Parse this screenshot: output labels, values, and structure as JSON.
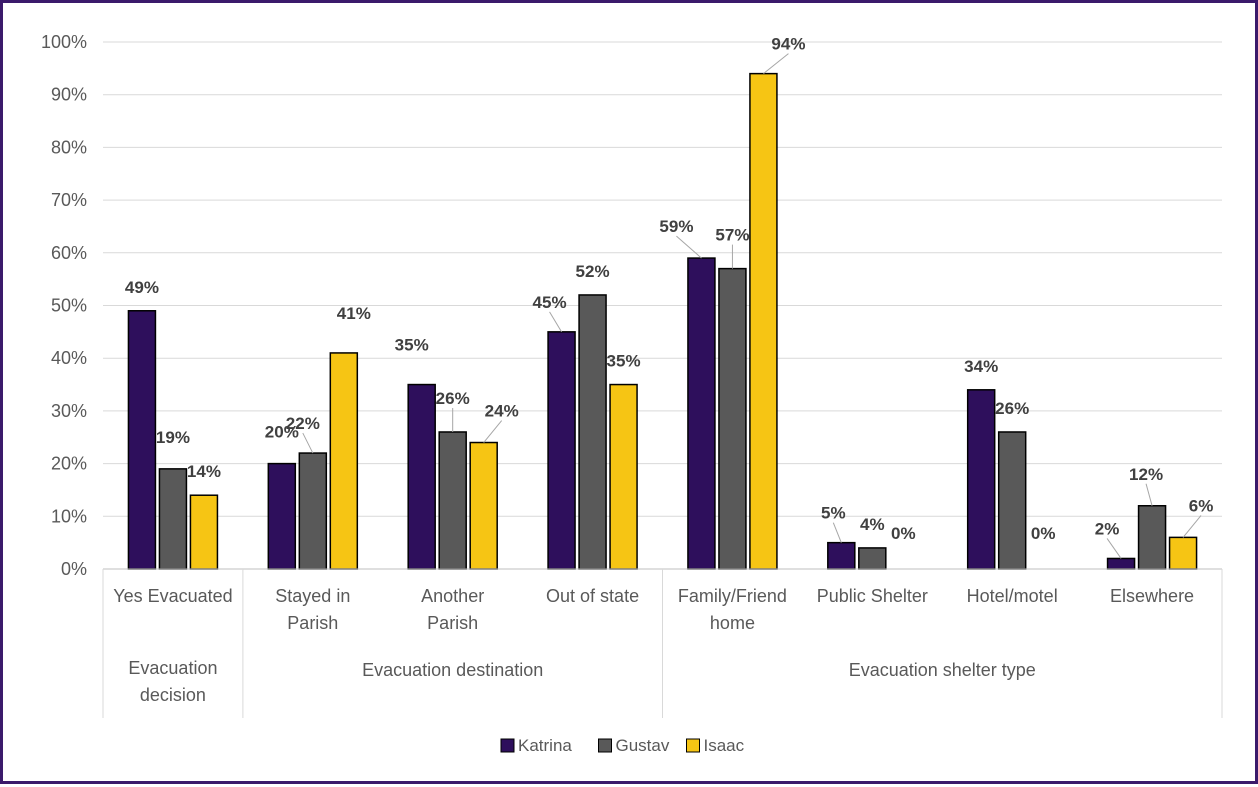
{
  "chart_data": {
    "type": "bar",
    "title": "",
    "xlabel": "",
    "ylabel": "",
    "ylim": [
      0,
      100
    ],
    "y_ticks": [
      "0%",
      "10%",
      "20%",
      "30%",
      "40%",
      "50%",
      "60%",
      "70%",
      "80%",
      "90%",
      "100%"
    ],
    "grid": true,
    "legend_position": "bottom",
    "categories": [
      "Yes Evacuated",
      "Stayed in Parish",
      "Another Parish",
      "Out of state",
      "Family/Friend home",
      "Public Shelter",
      "Hotel/motel",
      "Elsewhere"
    ],
    "category_lines": [
      [
        "Yes Evacuated"
      ],
      [
        "Stayed in",
        "Parish"
      ],
      [
        "Another",
        "Parish"
      ],
      [
        "Out of state"
      ],
      [
        "Family/Friend",
        "home"
      ],
      [
        "Public Shelter"
      ],
      [
        "Hotel/motel"
      ],
      [
        "Elsewhere"
      ]
    ],
    "groups": [
      {
        "label_lines": [
          "Evacuation",
          "decision"
        ],
        "span": [
          0,
          0
        ]
      },
      {
        "label_lines": [
          "Evacuation destination"
        ],
        "span": [
          1,
          3
        ]
      },
      {
        "label_lines": [
          "Evacuation shelter type"
        ],
        "span": [
          4,
          7
        ]
      }
    ],
    "series": [
      {
        "name": "Katrina",
        "color": "#2e0f5c",
        "values": [
          49,
          20,
          35,
          45,
          59,
          5,
          34,
          2
        ]
      },
      {
        "name": "Gustav",
        "color": "#595959",
        "values": [
          19,
          22,
          26,
          52,
          57,
          4,
          26,
          12
        ]
      },
      {
        "name": "Isaac",
        "color": "#f6c514",
        "values": [
          14,
          41,
          24,
          35,
          94,
          0,
          0,
          6
        ]
      }
    ]
  }
}
